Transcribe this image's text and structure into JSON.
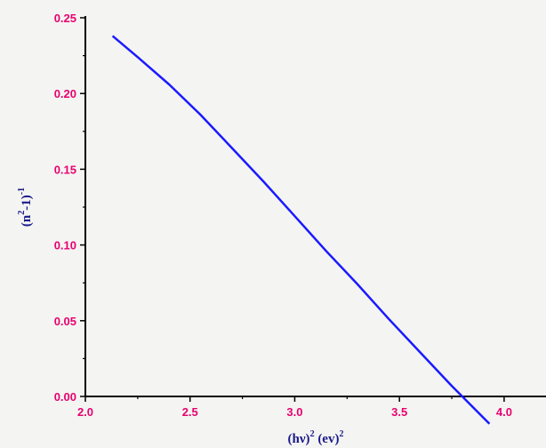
{
  "chart_data": {
    "type": "line",
    "x_axis": {
      "ticks": [
        2.0,
        2.5,
        3.0,
        3.5,
        4.0
      ],
      "tick_labels": [
        "2.0",
        "2.5",
        "3.0",
        "3.5",
        "4.0"
      ],
      "range": [
        2.0,
        4.2
      ],
      "label": {
        "base": "(hν)",
        "sup1": "2",
        "mid": " (ev)",
        "sup2": "2"
      }
    },
    "y_axis": {
      "ticks": [
        0.0,
        0.05,
        0.1,
        0.15,
        0.2,
        0.25
      ],
      "tick_labels": [
        "0.00",
        "0.05",
        "0.10",
        "0.15",
        "0.20",
        "0.25"
      ],
      "range": [
        0.0,
        0.25
      ],
      "label": {
        "open": "(n",
        "sup": "2",
        "mid": "-1)",
        "sup2": "-1"
      }
    },
    "series": [
      {
        "color": "#1a1aff",
        "x": [
          2.13,
          2.25,
          2.4,
          2.55,
          2.7,
          2.85,
          3.0,
          3.15,
          3.3,
          3.45,
          3.6,
          3.75,
          3.93
        ],
        "y": [
          0.238,
          0.224,
          0.206,
          0.186,
          0.164,
          0.142,
          0.119,
          0.096,
          0.074,
          0.051,
          0.029,
          0.007,
          -0.018
        ]
      }
    ],
    "colors": {
      "axis": "#000000",
      "tick_labels": "#e8006e",
      "axis_titles": "#1a1a8c"
    },
    "grid": false,
    "legend": null
  }
}
